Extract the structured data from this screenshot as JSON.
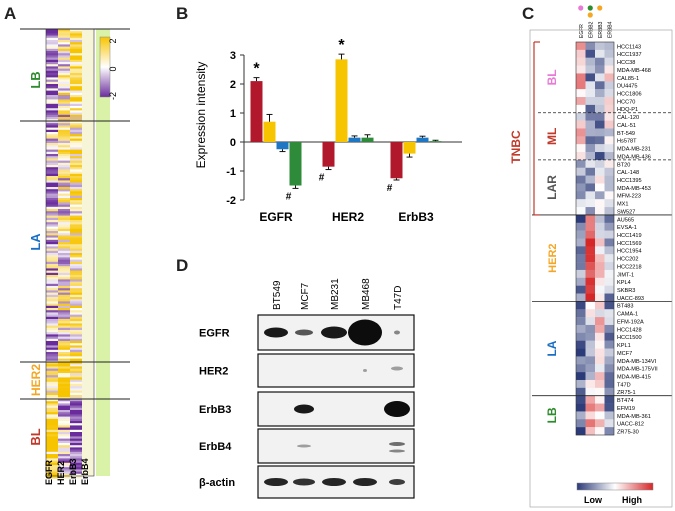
{
  "panels": {
    "a": {
      "letter": "A",
      "columns": [
        "EGFR",
        "HER2",
        "ErbB3",
        "ErbB4"
      ],
      "groups": [
        {
          "name": "LB",
          "color": "#2e8b2e"
        },
        {
          "name": "LA",
          "color": "#1a6fc4"
        },
        {
          "name": "HER2",
          "color": "#f5a623"
        },
        {
          "name": "BL",
          "color": "#c0392b"
        }
      ],
      "colorbar": {
        "max": "2",
        "mid": "0",
        "min": "-2",
        "colors": [
          "#f7c400",
          "#ffffff",
          "#6a2c9c"
        ]
      }
    },
    "b": {
      "letter": "B"
    },
    "c": {
      "letter": "C",
      "columns": [
        "EGFR",
        "ERBB2",
        "ERBB3",
        "ERBB4"
      ],
      "tnbc": "TNBC",
      "groups": [
        {
          "name": "BL",
          "color": "#e97ad6",
          "cells": [
            "HCC1143",
            "HCC1937",
            "HCC38",
            "MDA-MB-468",
            "CAL85-1",
            "DU4475",
            "HCC1806",
            "HCC70",
            "HDQ-P1"
          ]
        },
        {
          "name": "ML",
          "color": "#c0392b",
          "cells": [
            "CAL-120",
            "CAL-51",
            "BT-549",
            "Hs578T",
            "MDA-MB-231",
            "MDA-MB-436"
          ]
        },
        {
          "name": "LAR",
          "color": "#555555",
          "cells": [
            "BT20",
            "CAL-148",
            "HCC1395",
            "MDA-MB-453",
            "MFM-223",
            "MX1",
            "SW527"
          ]
        },
        {
          "name": "HER2",
          "color": "#f5a623",
          "cells": [
            "AU565",
            "EVSA-1",
            "HCC1419",
            "HCC1569",
            "HCC1954",
            "HCC202",
            "HCC2218",
            "JIMT-1",
            "KPL4",
            "SKBR3",
            "UACC-893"
          ]
        },
        {
          "name": "LA",
          "color": "#1a6fc4",
          "cells": [
            "BT483",
            "CAMA-1",
            "EFM-192A",
            "HCC1428",
            "HCC1500",
            "KPL1",
            "MCF7",
            "MDA-MB-134VI",
            "MDA-MB-175VII",
            "MDA-MB-415",
            "T47D",
            "ZR75-1"
          ]
        },
        {
          "name": "LB",
          "color": "#2e8b2e",
          "cells": [
            "BT474",
            "EFM19",
            "MDA-MB-361",
            "UACC-812",
            "ZR75-30"
          ]
        }
      ],
      "legend": {
        "low": "Low",
        "high": "High",
        "colors": [
          "#2b3a78",
          "#ffffff",
          "#d62728"
        ]
      }
    },
    "d": {
      "letter": "D",
      "lanes": [
        "BT549",
        "MCF7",
        "MB231",
        "MB468",
        "T47D"
      ],
      "rows": [
        "EGFR",
        "HER2",
        "ErbB3",
        "ErbB4",
        "β-actin"
      ]
    }
  },
  "chart_data": {
    "type": "bar",
    "categories": [
      "EGFR",
      "HER2",
      "ErbB3"
    ],
    "ylabel": "Expression intensity",
    "ylim": [
      -2,
      3
    ],
    "yticks": [
      "-2",
      "-1",
      "0",
      "1",
      "2",
      "3"
    ],
    "series": [
      {
        "color": "#b2182b",
        "values": [
          2.1,
          -0.85,
          -1.25
        ],
        "errors": [
          0.12,
          0.1,
          0.06
        ],
        "marks": [
          "*",
          "#",
          "#"
        ]
      },
      {
        "color": "#f7c400",
        "values": [
          0.7,
          2.85,
          -0.4
        ],
        "errors": [
          0.25,
          0.18,
          0.12
        ],
        "marks": [
          "",
          "*",
          ""
        ]
      },
      {
        "color": "#1f77c4",
        "values": [
          -0.25,
          0.15,
          0.15
        ],
        "errors": [
          0.08,
          0.06,
          0.05
        ],
        "marks": [
          "",
          "",
          ""
        ]
      },
      {
        "color": "#2e8b3a",
        "values": [
          -1.5,
          0.15,
          0.03
        ],
        "errors": [
          0.1,
          0.1,
          0.03
        ],
        "marks": [
          "#",
          "",
          ""
        ]
      }
    ]
  }
}
